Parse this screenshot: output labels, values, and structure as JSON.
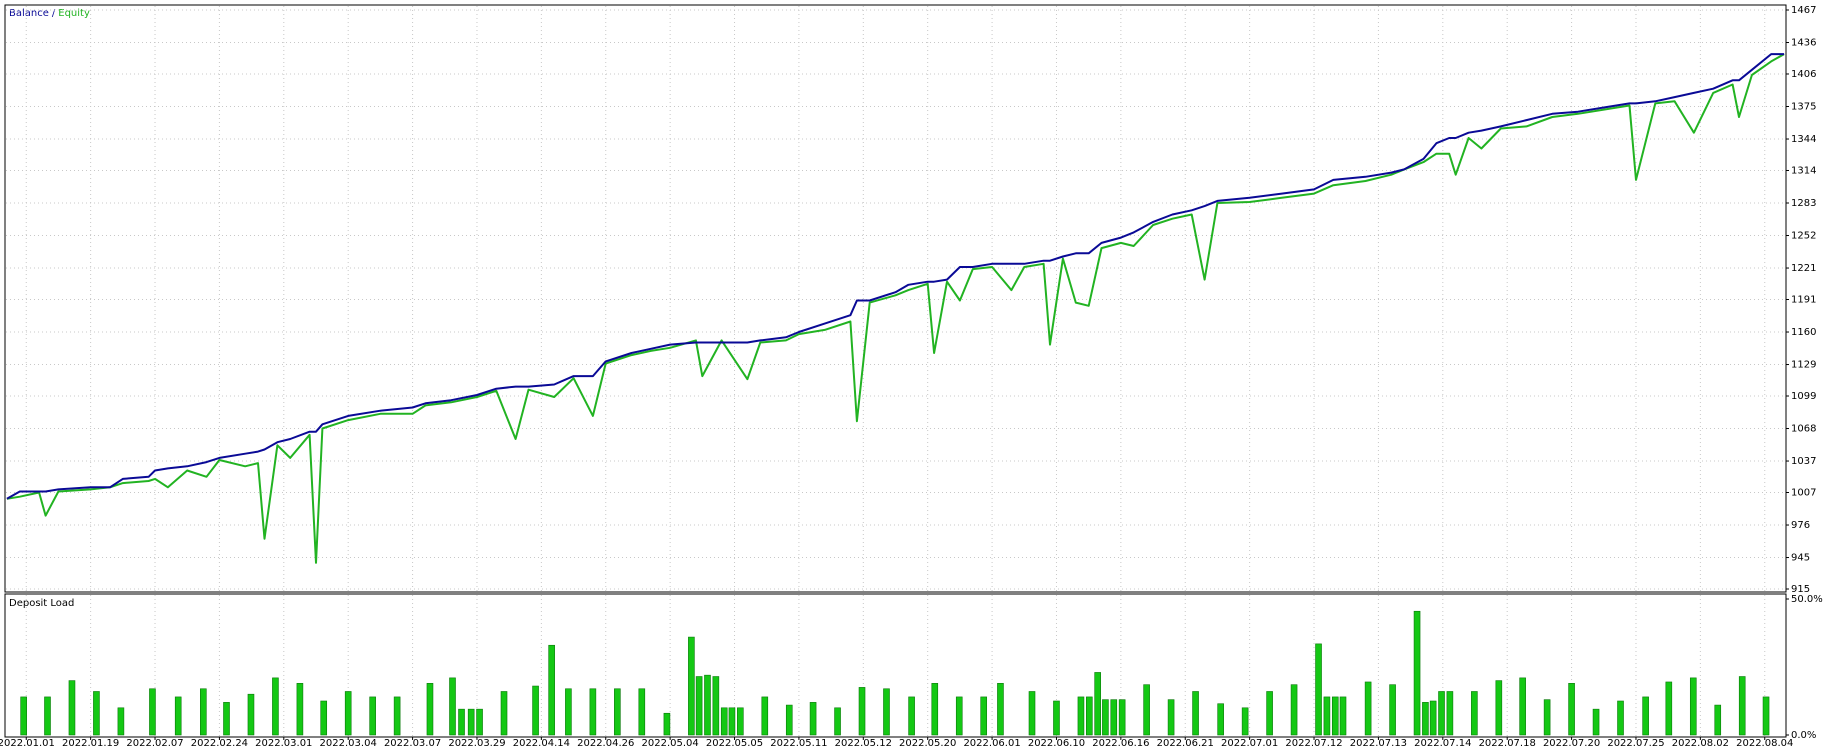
{
  "chart_data": [
    {
      "type": "line",
      "legend_separator": "/",
      "x": [
        -3,
        -1,
        2,
        3,
        5,
        10,
        13,
        15,
        19,
        20,
        22,
        25,
        28,
        30,
        34,
        36,
        37,
        39,
        41,
        44,
        45,
        46,
        50,
        55,
        60,
        62,
        66,
        70,
        73,
        76,
        78,
        82,
        85,
        88,
        90,
        94,
        97,
        100,
        104,
        105,
        108,
        112,
        114,
        118,
        120,
        124,
        128,
        129,
        131,
        135,
        137,
        140,
        141,
        143,
        145,
        147,
        150,
        153,
        155,
        158,
        159,
        161,
        163,
        165,
        167,
        170,
        172,
        175,
        178,
        181,
        183,
        185,
        190,
        195,
        200,
        203,
        208,
        212,
        214,
        217,
        219,
        221,
        222,
        224,
        226,
        229,
        233,
        237,
        241,
        245,
        249,
        250,
        253,
        256,
        259,
        262,
        265,
        266,
        268,
        271,
        273
      ],
      "series": [
        {
          "name": "Balance",
          "color": "#0a0a96",
          "values": [
            1001,
            1008,
            1008,
            1008,
            1010,
            1012,
            1012,
            1020,
            1022,
            1028,
            1030,
            1032,
            1036,
            1040,
            1044,
            1046,
            1048,
            1055,
            1058,
            1065,
            1065,
            1072,
            1080,
            1085,
            1088,
            1092,
            1095,
            1100,
            1106,
            1108,
            1108,
            1110,
            1118,
            1118,
            1132,
            1140,
            1144,
            1148,
            1150,
            1150,
            1150,
            1150,
            1152,
            1155,
            1160,
            1168,
            1176,
            1190,
            1190,
            1198,
            1205,
            1208,
            1208,
            1210,
            1222,
            1222,
            1225,
            1225,
            1225,
            1228,
            1228,
            1232,
            1235,
            1235,
            1245,
            1250,
            1255,
            1265,
            1272,
            1276,
            1280,
            1285,
            1288,
            1292,
            1296,
            1305,
            1308,
            1312,
            1315,
            1325,
            1340,
            1345,
            1345,
            1350,
            1352,
            1356,
            1362,
            1368,
            1370,
            1374,
            1378,
            1378,
            1380,
            1384,
            1388,
            1392,
            1400,
            1400,
            1410,
            1425,
            1425
          ]
        },
        {
          "name": "Equity",
          "color": "#22b322",
          "values": [
            1001,
            1003,
            1007,
            985,
            1008,
            1010,
            1012,
            1016,
            1018,
            1020,
            1012,
            1028,
            1022,
            1038,
            1032,
            1035,
            963,
            1052,
            1040,
            1062,
            940,
            1068,
            1076,
            1082,
            1082,
            1090,
            1093,
            1098,
            1104,
            1058,
            1105,
            1098,
            1116,
            1080,
            1130,
            1138,
            1142,
            1145,
            1152,
            1118,
            1152,
            1115,
            1150,
            1152,
            1158,
            1162,
            1170,
            1075,
            1188,
            1195,
            1200,
            1206,
            1140,
            1208,
            1190,
            1220,
            1222,
            1200,
            1222,
            1225,
            1148,
            1230,
            1188,
            1185,
            1240,
            1245,
            1242,
            1262,
            1268,
            1272,
            1210,
            1283,
            1284,
            1288,
            1292,
            1300,
            1304,
            1310,
            1315,
            1322,
            1330,
            1330,
            1310,
            1345,
            1335,
            1354,
            1356,
            1365,
            1368,
            1372,
            1376,
            1305,
            1378,
            1380,
            1350,
            1388,
            1396,
            1365,
            1405,
            1418,
            1425
          ]
        }
      ],
      "xlim": [
        -3.3,
        273.3
      ],
      "xticks": [
        0,
        10,
        20,
        30,
        40,
        50,
        60,
        70,
        80,
        90,
        100,
        110,
        120,
        130,
        140,
        150,
        160,
        170,
        180,
        190,
        200,
        210,
        220,
        230,
        240,
        250,
        260,
        270
      ],
      "ylim": [
        915,
        1467
      ],
      "yticks": [
        1467,
        1436,
        1406,
        1375,
        1344,
        1314,
        1283,
        1252,
        1221,
        1191,
        1160,
        1129,
        1099,
        1068,
        1037,
        1007,
        976,
        945,
        915
      ],
      "grid": true
    },
    {
      "type": "bar",
      "title": "Deposit Load",
      "color": "#14c814",
      "edge": "#0a780a",
      "x": [
        -0.4,
        3.3,
        7.1,
        10.9,
        14.7,
        19.6,
        23.6,
        27.5,
        31.1,
        34.9,
        38.7,
        42.5,
        46.2,
        50,
        53.8,
        57.6,
        62.7,
        66.2,
        67.6,
        69.1,
        70.4,
        74.2,
        79.1,
        81.6,
        84.2,
        88,
        91.8,
        95.6,
        99.5,
        103.3,
        104.5,
        105.8,
        107.1,
        108.4,
        109.6,
        110.9,
        114.7,
        118.5,
        122.2,
        126,
        129.8,
        133.6,
        137.5,
        141.1,
        144.9,
        148.7,
        151.3,
        156.2,
        160,
        163.8,
        165.1,
        166.4,
        167.6,
        168.9,
        170.2,
        174,
        177.8,
        181.6,
        185.5,
        189.3,
        193.1,
        196.9,
        200.7,
        202,
        203.3,
        204.5,
        208.4,
        212.2,
        216,
        217.3,
        218.5,
        219.8,
        221.1,
        224.9,
        228.7,
        232.4,
        236.2,
        240,
        243.8,
        247.6,
        251.5,
        255.1,
        258.9,
        262.7,
        266.5,
        270.2
      ],
      "values": [
        14,
        14,
        20,
        16,
        10,
        17,
        14,
        17,
        12,
        15,
        21,
        19,
        12.5,
        16,
        14,
        14,
        19,
        21,
        9.5,
        9.5,
        9.5,
        16,
        18,
        33,
        17,
        17,
        17,
        17,
        8,
        36,
        21.5,
        22,
        21.5,
        10,
        10,
        10,
        14,
        11,
        12,
        10,
        17.5,
        17,
        14,
        19,
        14,
        14,
        19,
        16,
        12.5,
        14,
        14,
        23,
        13,
        13,
        13,
        18.5,
        13,
        16,
        11.5,
        10,
        16,
        18.5,
        33.5,
        14,
        14,
        14,
        19.5,
        18.5,
        45.5,
        12,
        12.5,
        16,
        16,
        16,
        20,
        21,
        13,
        19,
        9.5,
        12.5,
        14,
        19.5,
        21,
        11,
        21.5,
        14
      ],
      "xlim": [
        -3.3,
        273.3
      ],
      "xticks": [
        {
          "value": 0,
          "label": "2022.01.01"
        },
        {
          "value": 10,
          "label": "2022.01.19"
        },
        {
          "value": 20,
          "label": "2022.02.07"
        },
        {
          "value": 30,
          "label": "2022.02.24"
        },
        {
          "value": 40,
          "label": "2022.03.01"
        },
        {
          "value": 50,
          "label": "2022.03.04"
        },
        {
          "value": 60,
          "label": "2022.03.07"
        },
        {
          "value": 70,
          "label": "2022.03.29"
        },
        {
          "value": 80,
          "label": "2022.04.14"
        },
        {
          "value": 90,
          "label": "2022.04.26"
        },
        {
          "value": 100,
          "label": "2022.05.04"
        },
        {
          "value": 110,
          "label": "2022.05.05"
        },
        {
          "value": 120,
          "label": "2022.05.11"
        },
        {
          "value": 130,
          "label": "2022.05.12"
        },
        {
          "value": 140,
          "label": "2022.05.20"
        },
        {
          "value": 150,
          "label": "2022.06.01"
        },
        {
          "value": 160,
          "label": "2022.06.10"
        },
        {
          "value": 170,
          "label": "2022.06.16"
        },
        {
          "value": 180,
          "label": "2022.06.21"
        },
        {
          "value": 190,
          "label": "2022.07.01"
        },
        {
          "value": 200,
          "label": "2022.07.12"
        },
        {
          "value": 210,
          "label": "2022.07.13"
        },
        {
          "value": 220,
          "label": "2022.07.14"
        },
        {
          "value": 230,
          "label": "2022.07.18"
        },
        {
          "value": 240,
          "label": "2022.07.20"
        },
        {
          "value": 250,
          "label": "2022.07.25"
        },
        {
          "value": 260,
          "label": "2022.08.02"
        },
        {
          "value": 270,
          "label": "2022.08.04"
        }
      ],
      "ylim": [
        0,
        50
      ],
      "yticks": [
        {
          "value": 0,
          "label": "0.0%"
        },
        {
          "value": 50,
          "label": "50.0%"
        }
      ],
      "grid": true
    }
  ]
}
